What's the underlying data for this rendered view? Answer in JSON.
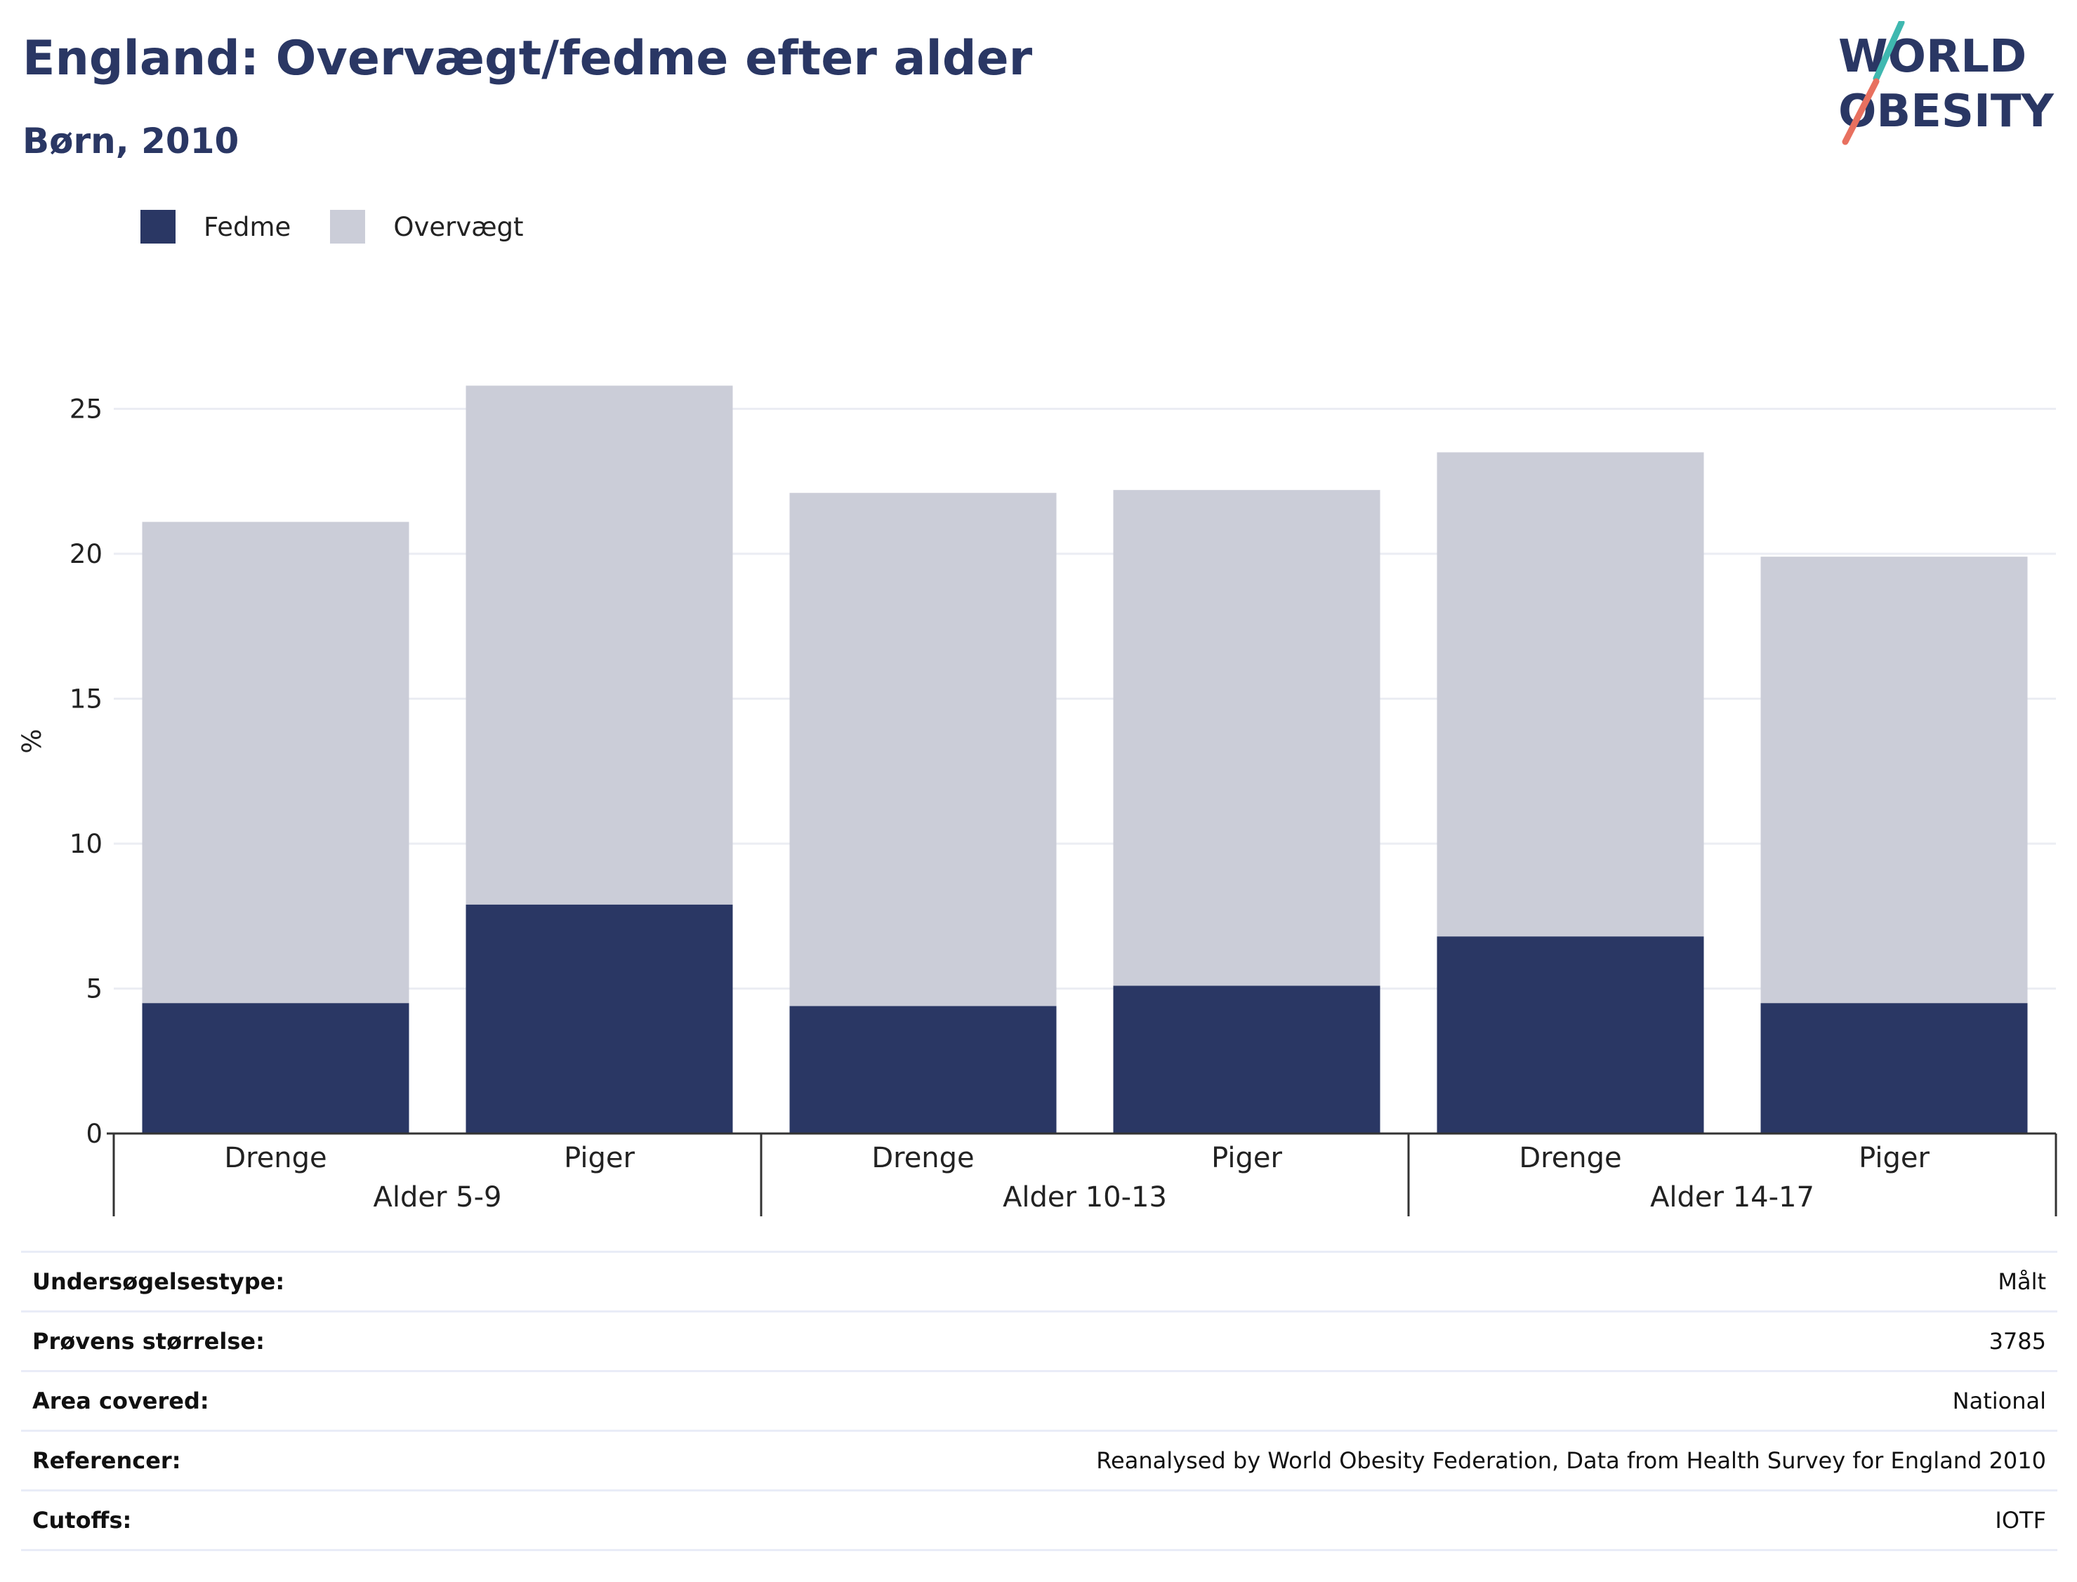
{
  "header": {
    "title": "England: Overvægt/fedme efter alder",
    "subtitle": "Børn, 2010"
  },
  "logo": {
    "line1": "WORLD",
    "line2": "OBESITY",
    "color": "#2a3764",
    "accent1": "#3fb8b0",
    "accent2": "#e8705f"
  },
  "legend": [
    {
      "label": "Fedme",
      "color": "#2a3764"
    },
    {
      "label": "Overvægt",
      "color": "#cbcdd8"
    }
  ],
  "chart_data": {
    "type": "bar",
    "stacked": true,
    "ylabel": "%",
    "ylim": [
      0,
      28
    ],
    "yticks": [
      0,
      5,
      10,
      15,
      20,
      25
    ],
    "grid": true,
    "legend_position": "top-left",
    "groups": [
      {
        "label": "Alder 5-9",
        "categories": [
          "Drenge",
          "Piger"
        ]
      },
      {
        "label": "Alder 10-13",
        "categories": [
          "Drenge",
          "Piger"
        ]
      },
      {
        "label": "Alder 14-17",
        "categories": [
          "Drenge",
          "Piger"
        ]
      }
    ],
    "series": [
      {
        "name": "Fedme",
        "color": "#2a3764",
        "values": [
          4.5,
          7.9,
          4.4,
          5.1,
          6.8,
          4.5
        ]
      },
      {
        "name": "Overvægt",
        "color": "#cbcdd8",
        "values": [
          16.6,
          17.9,
          17.7,
          17.1,
          16.7,
          15.4
        ]
      }
    ]
  },
  "info": [
    {
      "key": "Undersøgelsestype:",
      "value": "Målt"
    },
    {
      "key": "Prøvens størrelse:",
      "value": "3785"
    },
    {
      "key": "Area covered:",
      "value": "National"
    },
    {
      "key": "Referencer:",
      "value": "Reanalysed by World Obesity Federation, Data from Health Survey for England 2010"
    },
    {
      "key": "Cutoffs:",
      "value": "IOTF"
    }
  ]
}
